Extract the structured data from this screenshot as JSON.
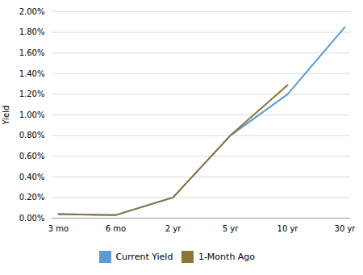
{
  "chart_data": {
    "type": "line",
    "categories": [
      "3 mo",
      "6 mo",
      "2 yr",
      "5 yr",
      "10 yr",
      "30 yr"
    ],
    "series": [
      {
        "name": "Current Yield",
        "color": "#5B9BD5",
        "values": [
          0.0004,
          0.0003,
          0.002,
          0.008,
          0.012,
          0.0185
        ]
      },
      {
        "name": "1-Month Ago",
        "color": "#8B7537",
        "values": [
          0.0004,
          0.0003,
          0.002,
          0.008,
          0.0129,
          null
        ]
      }
    ],
    "ylabel": "Yield",
    "ylim": [
      0.0,
      0.02
    ],
    "yticks": [
      {
        "value": 0.0,
        "label": "0.00%"
      },
      {
        "value": 0.002,
        "label": "0.20%"
      },
      {
        "value": 0.004,
        "label": "0.40%"
      },
      {
        "value": 0.006,
        "label": "0.60%"
      },
      {
        "value": 0.008,
        "label": "0.80%"
      },
      {
        "value": 0.01,
        "label": "1.00%"
      },
      {
        "value": 0.012,
        "label": "1.20%"
      },
      {
        "value": 0.014,
        "label": "1.40%"
      },
      {
        "value": 0.016,
        "label": "1.60%"
      },
      {
        "value": 0.018,
        "label": "1.80%"
      },
      {
        "value": 0.02,
        "label": "2.00%"
      }
    ],
    "grid": true,
    "legend": "bottom"
  }
}
